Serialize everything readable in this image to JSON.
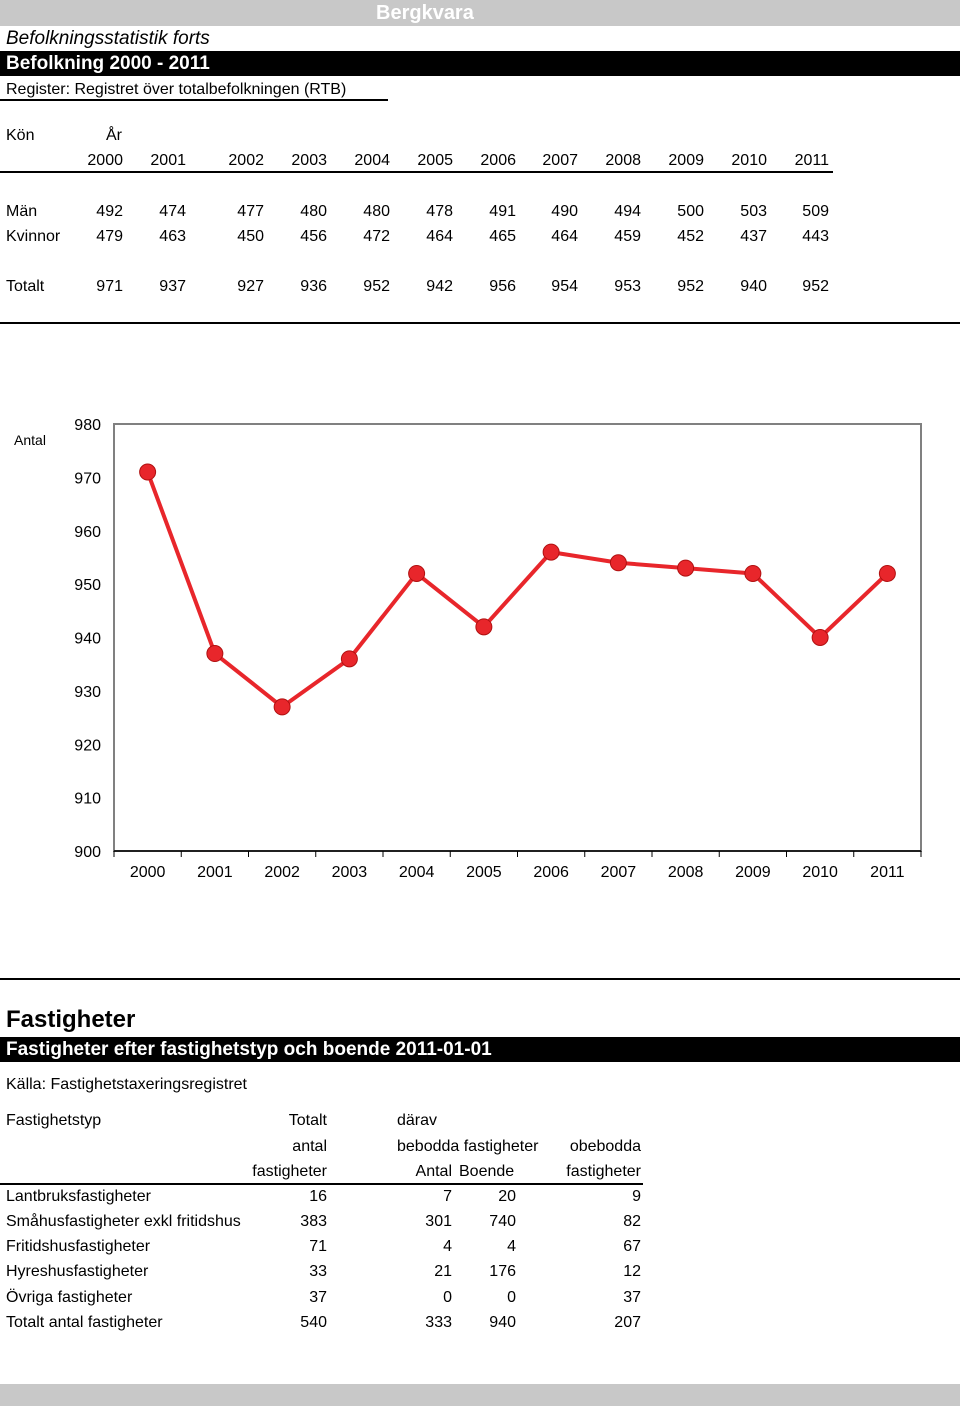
{
  "header": {
    "place": "Bergkvara",
    "subtitle": "Befolkningsstatistik forts",
    "title": "Befolkning 2000 - 2011",
    "register": "Register: Registret över totalbefolkningen (RTB)"
  },
  "population_table": {
    "col_label": "Kön",
    "year_label": "År",
    "years": [
      "2000",
      "2001",
      "2002",
      "2003",
      "2004",
      "2005",
      "2006",
      "2007",
      "2008",
      "2009",
      "2010",
      "2011"
    ],
    "rows": [
      {
        "label": "Män",
        "values": [
          "492",
          "474",
          "477",
          "480",
          "480",
          "478",
          "491",
          "490",
          "494",
          "500",
          "503",
          "509"
        ]
      },
      {
        "label": "Kvinnor",
        "values": [
          "479",
          "463",
          "450",
          "456",
          "472",
          "464",
          "465",
          "464",
          "459",
          "452",
          "437",
          "443"
        ]
      },
      {
        "label": "Totalt",
        "values": [
          "971",
          "937",
          "927",
          "936",
          "952",
          "942",
          "956",
          "954",
          "953",
          "952",
          "940",
          "952"
        ]
      }
    ]
  },
  "chart_data": {
    "type": "line",
    "title": "",
    "ylabel": "Antal",
    "xlabel": "",
    "x": [
      "2000",
      "2001",
      "2002",
      "2003",
      "2004",
      "2005",
      "2006",
      "2007",
      "2008",
      "2009",
      "2010",
      "2011"
    ],
    "series": [
      {
        "values": [
          971,
          937,
          927,
          936,
          952,
          942,
          956,
          954,
          953,
          952,
          940,
          952
        ]
      }
    ],
    "ylim": [
      900,
      980
    ],
    "yticks": [
      980,
      970,
      960,
      950,
      940,
      930,
      920,
      910,
      900
    ],
    "grid": false,
    "legend": "none",
    "line_color": "#e8262b",
    "marker_color": "#e8262b"
  },
  "properties": {
    "heading": "Fastigheter",
    "title": "Fastigheter efter fastighetstyp och boende 2011-01-01",
    "source": "Källa: Fastighetstaxeringsregistret",
    "headers": {
      "type": "Fastighetstyp",
      "total_1": "Totalt",
      "total_2": "antal",
      "total_3": "fastigheter",
      "of_which": "därav",
      "inhabited": "bebodda fastigheter",
      "inhabited_count": "Antal",
      "inhabited_residents": "Boende",
      "uninhabited_1": "obebodda",
      "uninhabited_2": "fastigheter"
    },
    "rows": [
      {
        "label": "Lantbruksfastigheter",
        "total": "16",
        "count": "7",
        "residents": "20",
        "uninhabited": "9"
      },
      {
        "label": "Småhusfastigheter exkl fritidshus",
        "total": "383",
        "count": "301",
        "residents": "740",
        "uninhabited": "82"
      },
      {
        "label": "Fritidshusfastigheter",
        "total": "71",
        "count": "4",
        "residents": "4",
        "uninhabited": "67"
      },
      {
        "label": "Hyreshusfastigheter",
        "total": "33",
        "count": "21",
        "residents": "176",
        "uninhabited": "12"
      },
      {
        "label": "Övriga fastigheter",
        "total": "37",
        "count": "0",
        "residents": "0",
        "uninhabited": "37"
      },
      {
        "label": "Totalt antal fastigheter",
        "total": "540",
        "count": "333",
        "residents": "940",
        "uninhabited": "207"
      }
    ]
  }
}
